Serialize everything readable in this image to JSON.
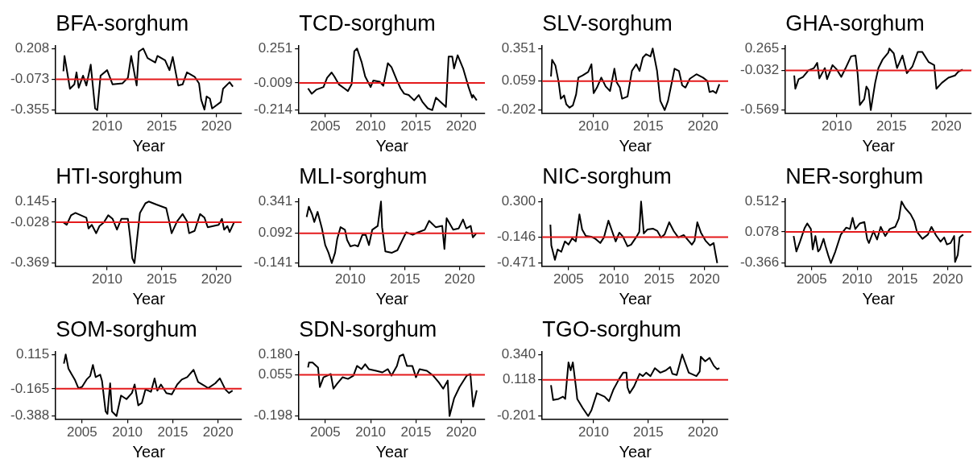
{
  "chart_data": [
    {
      "type": "line",
      "title": "BFA-sorghum",
      "xlabel": "Year",
      "color": "#000000",
      "x": [
        2006.0,
        2006.1,
        2006.6,
        2007.0,
        2007.2,
        2007.4,
        2007.8,
        2008.1,
        2008.5,
        2008.9,
        2009.1,
        2009.4,
        2010.0,
        2010.5,
        2011.4,
        2011.9,
        2012.2,
        2012.7,
        2012.9,
        2013.3,
        2013.7,
        2014.4,
        2014.6,
        2015.3,
        2015.7,
        2016.0,
        2016.5,
        2016.9,
        2017.3,
        2018.0,
        2018.4,
        2018.6,
        2018.9,
        2019.1,
        2019.4,
        2019.6,
        2020.4,
        2020.6,
        2021.2,
        2021.5
      ],
      "values": [
        0.0,
        0.14,
        -0.16,
        -0.12,
        -0.01,
        -0.15,
        -0.04,
        -0.13,
        0.06,
        -0.34,
        -0.355,
        -0.04,
        0.01,
        -0.12,
        -0.11,
        -0.06,
        0.14,
        -0.13,
        0.18,
        0.208,
        0.12,
        0.08,
        0.14,
        0.1,
        0.01,
        0.13,
        -0.13,
        -0.12,
        -0.01,
        -0.05,
        -0.11,
        -0.26,
        -0.35,
        -0.23,
        -0.25,
        -0.34,
        -0.28,
        -0.16,
        -0.1,
        -0.14
      ],
      "xlim": [
        2005.3,
        2022.3
      ],
      "xticks": [
        2010,
        2015,
        2020
      ],
      "ylim": [
        -0.383,
        0.236
      ],
      "yticks": [
        -0.355,
        -0.073,
        0.208
      ],
      "ref_lines": [
        {
          "axis": "y",
          "value": -0.073,
          "color": "#e41a1c"
        }
      ],
      "grid": false
    },
    {
      "type": "line",
      "title": "TCD-sorghum",
      "xlabel": "Year",
      "color": "#000000",
      "x": [
        2003.1,
        2003.5,
        2004.0,
        2004.8,
        2005.2,
        2005.7,
        2006.0,
        2006.5,
        2007.1,
        2007.5,
        2007.9,
        2008.2,
        2008.5,
        2009.0,
        2009.4,
        2010.0,
        2010.3,
        2011.0,
        2011.4,
        2011.9,
        2012.3,
        2012.9,
        2013.3,
        2013.7,
        2014.2,
        2014.8,
        2015.3,
        2015.7,
        2016.3,
        2016.8,
        2017.2,
        2018.3,
        2018.6,
        2019.0,
        2019.2,
        2019.6,
        2020.2,
        2020.8,
        2021.2,
        2021.3,
        2021.7
      ],
      "values": [
        -0.05,
        -0.09,
        -0.06,
        -0.04,
        0.03,
        0.07,
        0.04,
        -0.02,
        -0.05,
        -0.07,
        -0.02,
        0.23,
        0.251,
        0.15,
        0.04,
        -0.04,
        0.01,
        0.0,
        -0.03,
        0.14,
        0.11,
        0.01,
        -0.05,
        -0.09,
        -0.1,
        -0.14,
        -0.1,
        -0.15,
        -0.2,
        -0.214,
        -0.12,
        -0.19,
        0.19,
        0.19,
        0.1,
        0.2,
        0.1,
        -0.04,
        -0.12,
        -0.1,
        -0.14
      ],
      "xlim": [
        2002.1,
        2022.6
      ],
      "xticks": [
        2005,
        2010,
        2015,
        2020
      ],
      "ylim": [
        -0.237,
        0.274
      ],
      "yticks": [
        -0.214,
        -0.009,
        0.251
      ],
      "ref_lines": [
        {
          "axis": "y",
          "value": -0.009,
          "color": "#e41a1c"
        }
      ],
      "grid": false
    },
    {
      "type": "line",
      "title": "SLV-sorghum",
      "xlabel": "Year",
      "color": "#000000",
      "x": [
        2006.1,
        2006.2,
        2006.5,
        2006.8,
        2007.0,
        2007.3,
        2007.5,
        2007.8,
        2008.1,
        2008.4,
        2008.6,
        2009.0,
        2009.5,
        2009.8,
        2010.0,
        2010.3,
        2010.7,
        2011.1,
        2011.5,
        2011.9,
        2012.1,
        2012.4,
        2012.6,
        2013.1,
        2013.5,
        2013.9,
        2014.2,
        2014.5,
        2014.8,
        2015.2,
        2015.4,
        2015.8,
        2016.1,
        2016.5,
        2016.8,
        2017.3,
        2017.4,
        2017.8,
        2018.1,
        2018.4,
        2018.8,
        2019.4,
        2020.0,
        2020.4,
        2020.6,
        2020.9,
        2021.2,
        2021.5
      ],
      "values": [
        0.1,
        0.25,
        0.2,
        0.05,
        -0.1,
        -0.07,
        -0.15,
        -0.18,
        -0.16,
        -0.06,
        0.09,
        0.11,
        0.14,
        0.21,
        -0.05,
        0.0,
        0.09,
        0.01,
        -0.03,
        0.17,
        0.05,
        0.0,
        -0.1,
        -0.08,
        0.15,
        0.21,
        0.15,
        0.27,
        0.3,
        0.28,
        0.351,
        0.15,
        -0.12,
        -0.202,
        -0.12,
        0.12,
        0.17,
        0.15,
        0.02,
        0.0,
        0.08,
        0.12,
        0.09,
        0.06,
        -0.04,
        -0.03,
        -0.05,
        0.03
      ],
      "xlim": [
        2005.3,
        2022.3
      ],
      "xticks": [
        2010,
        2015,
        2020
      ],
      "ylim": [
        -0.23,
        0.379
      ],
      "yticks": [
        -0.202,
        0.059,
        0.351
      ],
      "ref_lines": [
        {
          "axis": "y",
          "value": 0.059,
          "color": "#e41a1c"
        }
      ],
      "grid": false
    },
    {
      "type": "line",
      "title": "GHA-sorghum",
      "xlabel": "Year",
      "color": "#000000",
      "x": [
        2006.1,
        2006.2,
        2006.5,
        2006.9,
        2007.4,
        2007.9,
        2008.2,
        2008.4,
        2008.9,
        2009.1,
        2009.6,
        2010.0,
        2010.4,
        2010.8,
        2011.3,
        2011.7,
        2011.9,
        2012.1,
        2012.5,
        2012.7,
        2012.9,
        2013.1,
        2013.5,
        2013.8,
        2014.2,
        2014.7,
        2014.8,
        2015.2,
        2015.5,
        2016.0,
        2016.4,
        2016.9,
        2017.4,
        2017.8,
        2018.4,
        2018.9,
        2019.1,
        2019.6,
        2020.2,
        2020.8,
        2021.1,
        2021.5
      ],
      "values": [
        -0.1,
        -0.28,
        -0.15,
        -0.12,
        -0.03,
        0.0,
        0.07,
        -0.14,
        0.0,
        -0.15,
        0.04,
        -0.02,
        -0.12,
        0.0,
        0.16,
        0.17,
        -0.08,
        -0.5,
        -0.42,
        -0.25,
        -0.3,
        -0.569,
        -0.2,
        0.0,
        0.12,
        0.21,
        0.265,
        0.2,
        0.0,
        0.17,
        -0.07,
        0.02,
        0.22,
        0.22,
        0.08,
        0.04,
        -0.28,
        -0.2,
        -0.13,
        -0.1,
        -0.05,
        -0.02
      ],
      "xlim": [
        2005.3,
        2022.3
      ],
      "xticks": [
        2010,
        2015,
        2020
      ],
      "ylim": [
        -0.611,
        0.307
      ],
      "yticks": [
        -0.569,
        -0.032,
        0.265
      ],
      "ref_lines": [
        {
          "axis": "y",
          "value": -0.032,
          "color": "#e41a1c"
        }
      ],
      "grid": false
    },
    {
      "type": "line",
      "title": "HTI-sorghum",
      "xlabel": "Year",
      "color": "#000000",
      "x": [
        2006.0,
        2006.3,
        2006.7,
        2007.1,
        2007.6,
        2008.1,
        2008.3,
        2008.6,
        2009.0,
        2009.3,
        2009.7,
        2010.1,
        2010.5,
        2010.9,
        2011.3,
        2011.9,
        2012.1,
        2012.3,
        2012.5,
        2012.7,
        2013.0,
        2013.5,
        2013.8,
        2014.5,
        2015.4,
        2015.6,
        2015.9,
        2016.4,
        2016.9,
        2017.3,
        2017.5,
        2018.0,
        2018.5,
        2018.9,
        2019.2,
        2019.7,
        2020.2,
        2020.5,
        2020.7,
        2021.0,
        2021.2,
        2021.6
      ],
      "values": [
        -0.03,
        -0.05,
        0.03,
        0.05,
        0.03,
        0.01,
        -0.08,
        -0.05,
        -0.12,
        -0.06,
        -0.03,
        0.03,
        0.0,
        -0.09,
        0.0,
        0.0,
        -0.15,
        -0.33,
        -0.369,
        -0.2,
        0.05,
        0.13,
        0.145,
        0.12,
        0.09,
        0.01,
        -0.12,
        -0.02,
        0.04,
        -0.02,
        -0.12,
        -0.1,
        0.04,
        0.01,
        -0.07,
        -0.06,
        -0.05,
        0.0,
        -0.09,
        -0.06,
        -0.11,
        -0.03
      ],
      "xlim": [
        2005.3,
        2022.3
      ],
      "xticks": [
        2010,
        2015,
        2020
      ],
      "ylim": [
        -0.395,
        0.171
      ],
      "yticks": [
        -0.369,
        -0.028,
        0.145
      ],
      "ref_lines": [
        {
          "axis": "y",
          "value": -0.028,
          "color": "#e41a1c"
        }
      ],
      "grid": false
    },
    {
      "type": "line",
      "title": "MLI-sorghum",
      "xlabel": "Year",
      "color": "#000000",
      "x": [
        2006.0,
        2006.2,
        2006.5,
        2006.7,
        2007.0,
        2007.4,
        2007.7,
        2008.0,
        2008.3,
        2008.6,
        2008.8,
        2009.1,
        2009.5,
        2009.7,
        2010.0,
        2010.4,
        2010.7,
        2011.1,
        2011.4,
        2011.7,
        2012.0,
        2012.5,
        2012.8,
        2012.9,
        2013.2,
        2013.8,
        2014.3,
        2014.7,
        2015.1,
        2015.7,
        2016.2,
        2016.8,
        2017.2,
        2017.8,
        2018.4,
        2018.6,
        2018.8,
        2019.4,
        2019.9,
        2020.3,
        2020.6,
        2021.0,
        2021.2,
        2021.5
      ],
      "values": [
        0.22,
        0.3,
        0.24,
        0.18,
        0.26,
        0.13,
        0.0,
        -0.06,
        -0.141,
        -0.06,
        0.05,
        0.14,
        0.12,
        0.04,
        -0.01,
        0.0,
        -0.01,
        0.08,
        0.08,
        0.0,
        0.12,
        0.15,
        0.341,
        0.14,
        -0.05,
        -0.06,
        -0.04,
        0.03,
        0.1,
        0.08,
        0.1,
        0.12,
        0.19,
        0.14,
        0.15,
        -0.03,
        0.21,
        0.12,
        0.13,
        0.2,
        0.13,
        0.15,
        0.06,
        0.09
      ],
      "xlim": [
        2005.3,
        2022.3
      ],
      "xticks": [
        2010,
        2015,
        2020
      ],
      "ylim": [
        -0.165,
        0.365
      ],
      "yticks": [
        -0.141,
        0.092,
        0.341
      ],
      "ref_lines": [
        {
          "axis": "y",
          "value": 0.092,
          "color": "#e41a1c"
        }
      ],
      "grid": false
    },
    {
      "type": "line",
      "title": "NIC-sorghum",
      "xlabel": "Year",
      "color": "#000000",
      "x": [
        2003.0,
        2003.1,
        2003.5,
        2003.8,
        2004.2,
        2004.6,
        2005.0,
        2005.4,
        2005.8,
        2006.2,
        2006.5,
        2006.9,
        2007.5,
        2008.0,
        2008.5,
        2008.9,
        2009.4,
        2009.8,
        2010.2,
        2010.6,
        2011.0,
        2011.5,
        2011.9,
        2012.5,
        2012.8,
        2013.0,
        2013.3,
        2013.7,
        2014.3,
        2014.8,
        2015.2,
        2015.6,
        2016.1,
        2016.6,
        2017.1,
        2017.7,
        2018.3,
        2018.6,
        2018.9,
        2019.2,
        2019.6,
        2020.1,
        2020.6,
        2021.0,
        2021.2,
        2021.4
      ],
      "values": [
        0.01,
        -0.25,
        -0.43,
        -0.3,
        -0.33,
        -0.2,
        -0.24,
        -0.16,
        -0.2,
        0.14,
        -0.05,
        -0.13,
        -0.14,
        -0.17,
        -0.22,
        -0.15,
        0.06,
        -0.07,
        -0.2,
        -0.09,
        -0.14,
        -0.26,
        -0.24,
        -0.14,
        -0.08,
        0.3,
        -0.1,
        -0.05,
        -0.04,
        -0.07,
        -0.15,
        -0.11,
        0.04,
        -0.07,
        -0.15,
        -0.12,
        -0.2,
        -0.24,
        -0.19,
        0.04,
        -0.09,
        -0.19,
        -0.25,
        -0.22,
        -0.35,
        -0.471
      ],
      "xlim": [
        2002.1,
        2022.6
      ],
      "xticks": [
        2005,
        2010,
        2015,
        2020
      ],
      "ylim": [
        -0.51,
        0.339
      ],
      "yticks": [
        -0.471,
        -0.146,
        {
          "value": 0.3,
          "label": "0.300"
        }
      ],
      "ref_lines": [
        {
          "axis": "y",
          "value": -0.146,
          "color": "#e41a1c"
        }
      ],
      "grid": false
    },
    {
      "type": "line",
      "title": "NER-sorghum",
      "xlabel": "Year",
      "color": "#000000",
      "x": [
        2003.0,
        2003.3,
        2003.7,
        2004.2,
        2004.5,
        2004.9,
        2005.1,
        2005.4,
        2005.7,
        2005.9,
        2006.3,
        2006.5,
        2006.8,
        2007.1,
        2007.6,
        2008.2,
        2008.8,
        2009.2,
        2009.5,
        2009.8,
        2010.3,
        2010.8,
        2011.1,
        2011.3,
        2011.8,
        2012.2,
        2012.6,
        2013.1,
        2013.6,
        2014.2,
        2014.6,
        2014.9,
        2015.3,
        2015.9,
        2016.3,
        2016.6,
        2017.2,
        2017.8,
        2018.2,
        2018.7,
        2019.2,
        2019.6,
        2019.9,
        2020.3,
        2020.7,
        2020.8,
        2021.1,
        2021.3,
        2021.7
      ],
      "values": [
        0.02,
        -0.2,
        -0.06,
        0.13,
        0.2,
        0.12,
        -0.17,
        0.02,
        -0.2,
        -0.17,
        -0.02,
        -0.12,
        -0.25,
        -0.366,
        -0.2,
        0.04,
        0.14,
        0.12,
        0.28,
        0.12,
        0.2,
        0.22,
        -0.02,
        -0.08,
        0.09,
        -0.03,
        0.15,
        0.02,
        0.12,
        0.15,
        0.27,
        0.512,
        0.42,
        0.33,
        0.23,
        0.08,
        -0.02,
        0.04,
        0.15,
        0.03,
        -0.06,
        0.0,
        -0.1,
        -0.08,
        0.02,
        -0.35,
        -0.25,
        0.0,
        0.04
      ],
      "xlim": [
        2002.1,
        2022.6
      ],
      "xticks": [
        2005,
        2010,
        2015,
        2020
      ],
      "ylim": [
        -0.41,
        0.556
      ],
      "yticks": [
        -0.366,
        0.078,
        0.512
      ],
      "ref_lines": [
        {
          "axis": "y",
          "value": 0.078,
          "color": "#e41a1c"
        }
      ],
      "grid": false
    },
    {
      "type": "line",
      "title": "SOM-sorghum",
      "xlabel": "Year",
      "color": "#000000",
      "x": [
        2003.0,
        2003.2,
        2003.5,
        2003.8,
        2004.2,
        2004.6,
        2005.0,
        2005.5,
        2005.9,
        2006.2,
        2006.5,
        2007.0,
        2007.2,
        2007.6,
        2007.8,
        2008.1,
        2008.3,
        2008.8,
        2009.3,
        2009.9,
        2010.5,
        2010.8,
        2011.2,
        2011.6,
        2012.0,
        2012.6,
        2013.0,
        2013.3,
        2013.7,
        2014.3,
        2014.9,
        2015.5,
        2016.0,
        2016.6,
        2017.3,
        2017.8,
        2018.5,
        2018.9,
        2019.7,
        2020.2,
        2020.8,
        2021.2,
        2021.6
      ],
      "values": [
        0.04,
        0.115,
        0.0,
        -0.04,
        -0.09,
        -0.16,
        -0.15,
        -0.09,
        -0.06,
        0.03,
        -0.07,
        -0.05,
        -0.1,
        -0.35,
        -0.37,
        -0.12,
        -0.35,
        -0.388,
        -0.22,
        -0.25,
        -0.2,
        -0.13,
        -0.3,
        -0.28,
        -0.17,
        -0.19,
        -0.08,
        -0.18,
        -0.13,
        -0.2,
        -0.21,
        -0.13,
        -0.09,
        -0.07,
        -0.01,
        -0.11,
        -0.14,
        -0.16,
        -0.12,
        -0.08,
        -0.17,
        -0.2,
        -0.18
      ],
      "xlim": [
        2002.1,
        2022.6
      ],
      "xticks": [
        2005,
        2010,
        2015,
        2020
      ],
      "ylim": [
        -0.413,
        0.14
      ],
      "yticks": [
        -0.388,
        -0.165,
        0.115
      ],
      "ref_lines": [
        {
          "axis": "y",
          "value": -0.165,
          "color": "#e41a1c"
        }
      ],
      "grid": false
    },
    {
      "type": "line",
      "title": "SDN-sorghum",
      "xlabel": "Year",
      "color": "#000000",
      "x": [
        2003.1,
        2003.2,
        2003.6,
        2004.2,
        2004.4,
        2004.8,
        2005.2,
        2005.6,
        2005.9,
        2006.3,
        2006.9,
        2007.5,
        2008.1,
        2008.5,
        2009.0,
        2009.4,
        2009.8,
        2010.6,
        2011.3,
        2011.9,
        2012.3,
        2012.9,
        2013.2,
        2013.6,
        2014.0,
        2014.6,
        2015.0,
        2015.4,
        2016.2,
        2016.9,
        2017.5,
        2018.0,
        2018.5,
        2018.7,
        2019.2,
        2019.8,
        2020.6,
        2021.0,
        2021.3,
        2021.7
      ],
      "values": [
        0.1,
        0.13,
        0.13,
        0.1,
        -0.02,
        0.04,
        0.05,
        0.06,
        -0.03,
        0.0,
        0.04,
        0.03,
        0.05,
        0.11,
        0.09,
        0.12,
        0.09,
        0.08,
        0.07,
        0.09,
        0.05,
        0.11,
        0.17,
        0.18,
        0.11,
        0.11,
        0.04,
        0.09,
        0.08,
        0.05,
        0.01,
        -0.03,
        0.02,
        -0.198,
        -0.09,
        -0.02,
        0.05,
        0.06,
        -0.14,
        -0.04
      ],
      "xlim": [
        2002.1,
        2022.6
      ],
      "xticks": [
        2005,
        2010,
        2015,
        2020
      ],
      "ylim": [
        -0.217,
        0.199
      ],
      "yticks": [
        -0.198,
        0.055,
        {
          "value": 0.18,
          "label": "0.180"
        }
      ],
      "ref_lines": [
        {
          "axis": "y",
          "value": 0.055,
          "color": "#e41a1c"
        }
      ],
      "grid": false
    },
    {
      "type": "line",
      "title": "TGO-sorghum",
      "xlabel": "Year",
      "color": "#000000",
      "x": [
        2006.1,
        2006.3,
        2006.8,
        2007.2,
        2007.4,
        2007.7,
        2007.9,
        2008.1,
        2008.4,
        2008.5,
        2009.0,
        2009.5,
        2009.8,
        2010.3,
        2011.0,
        2011.4,
        2011.8,
        2012.3,
        2012.7,
        2013.0,
        2013.1,
        2013.3,
        2013.7,
        2014.2,
        2014.5,
        2014.8,
        2015.2,
        2015.6,
        2016.1,
        2016.6,
        2017.0,
        2017.2,
        2017.6,
        2018.1,
        2018.7,
        2019.4,
        2019.7,
        2019.8,
        2020.2,
        2020.6,
        2021.0,
        2021.3,
        2021.5
      ],
      "values": [
        0.07,
        -0.06,
        -0.05,
        -0.03,
        -0.05,
        0.27,
        0.2,
        0.27,
        0.04,
        -0.05,
        -0.13,
        -0.201,
        -0.15,
        0.0,
        -0.03,
        -0.07,
        0.03,
        0.12,
        0.18,
        0.18,
        0.05,
        0.0,
        0.06,
        0.17,
        0.15,
        0.18,
        0.15,
        0.22,
        0.18,
        0.2,
        0.23,
        0.17,
        0.16,
        0.34,
        0.18,
        0.15,
        0.19,
        0.32,
        0.28,
        0.31,
        0.24,
        0.21,
        0.22
      ],
      "xlim": [
        2005.3,
        2022.3
      ],
      "xticks": [
        2010,
        2015,
        2020
      ],
      "ylim": [
        -0.228,
        0.367
      ],
      "yticks": [
        -0.201,
        0.118,
        {
          "value": 0.34,
          "label": "0.340"
        }
      ],
      "ref_lines": [
        {
          "axis": "y",
          "value": 0.118,
          "color": "#e41a1c"
        }
      ],
      "grid": false
    }
  ]
}
